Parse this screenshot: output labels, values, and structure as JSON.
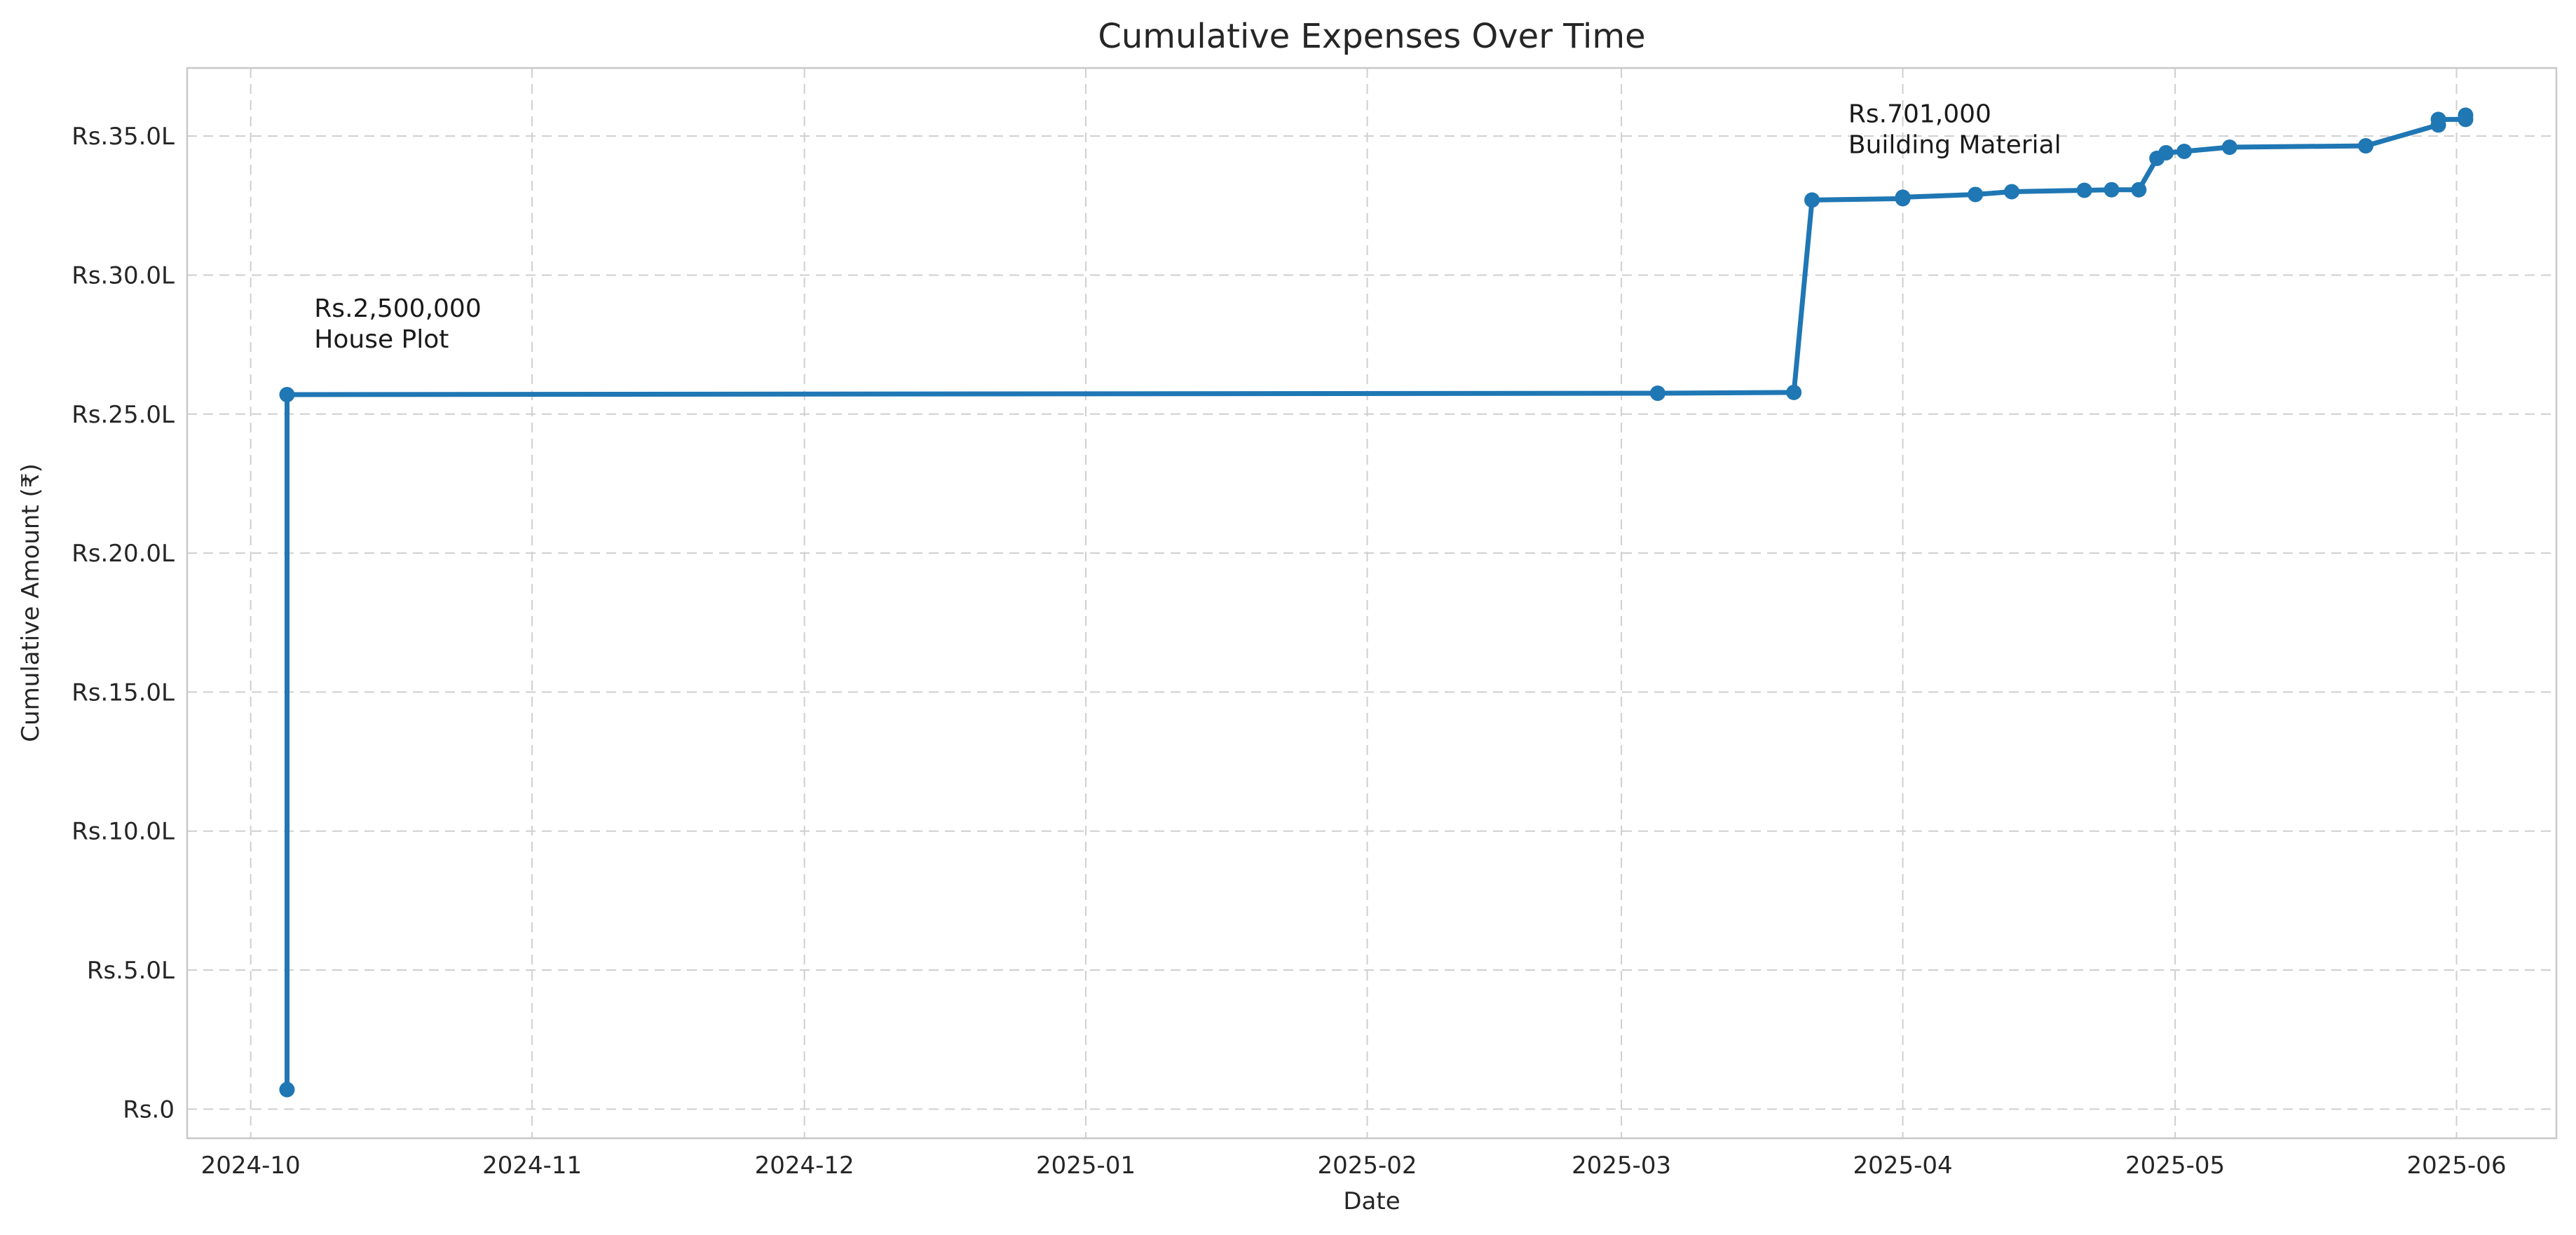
{
  "chart_data": {
    "type": "line",
    "title": "Cumulative Expenses Over Time",
    "xlabel": "Date",
    "ylabel": "Cumulative Amount (₹)",
    "x_ticks": [
      "2024-10",
      "2024-11",
      "2024-12",
      "2025-01",
      "2025-02",
      "2025-03",
      "2025-04",
      "2025-05",
      "2025-06"
    ],
    "y_ticks": [
      {
        "value": 0,
        "label": "Rs.0"
      },
      {
        "value": 500000,
        "label": "Rs.5.0L"
      },
      {
        "value": 1000000,
        "label": "Rs.10.0L"
      },
      {
        "value": 1500000,
        "label": "Rs.15.0L"
      },
      {
        "value": 2000000,
        "label": "Rs.20.0L"
      },
      {
        "value": 2500000,
        "label": "Rs.25.0L"
      },
      {
        "value": 3000000,
        "label": "Rs.30.0L"
      },
      {
        "value": 3500000,
        "label": "Rs.35.0L"
      }
    ],
    "xlim": [
      "2024-09-24",
      "2025-06-12"
    ],
    "ylim": [
      -105000,
      3745000
    ],
    "grid": true,
    "series": [
      {
        "color": "#1f77b4",
        "points": [
          {
            "x": "2024-10-05",
            "y": 70000
          },
          {
            "x": "2024-10-05",
            "y": 2570000
          },
          {
            "x": "2025-03-05",
            "y": 2575000
          },
          {
            "x": "2025-03-20",
            "y": 2578000
          },
          {
            "x": "2025-03-22",
            "y": 3270000
          },
          {
            "x": "2025-04-01",
            "y": 3275000
          },
          {
            "x": "2025-04-01",
            "y": 3280000
          },
          {
            "x": "2025-04-09",
            "y": 3290000
          },
          {
            "x": "2025-04-13",
            "y": 3300000
          },
          {
            "x": "2025-04-21",
            "y": 3305000
          },
          {
            "x": "2025-04-24",
            "y": 3307000
          },
          {
            "x": "2025-04-27",
            "y": 3307000
          },
          {
            "x": "2025-04-29",
            "y": 3420000
          },
          {
            "x": "2025-04-30",
            "y": 3440000
          },
          {
            "x": "2025-05-02",
            "y": 3445000
          },
          {
            "x": "2025-05-07",
            "y": 3460000
          },
          {
            "x": "2025-05-22",
            "y": 3465000
          },
          {
            "x": "2025-05-30",
            "y": 3540000
          },
          {
            "x": "2025-05-30",
            "y": 3560000
          },
          {
            "x": "2025-06-02",
            "y": 3560000
          },
          {
            "x": "2025-06-02",
            "y": 3575000
          }
        ]
      }
    ],
    "annotations": [
      {
        "x": "2024-10-08",
        "y": 2850000,
        "lines": [
          "Rs.2,500,000",
          "House Plot"
        ]
      },
      {
        "x": "2025-03-26",
        "y": 3550000,
        "lines": [
          "Rs.701,000",
          "Building Material"
        ]
      }
    ]
  }
}
